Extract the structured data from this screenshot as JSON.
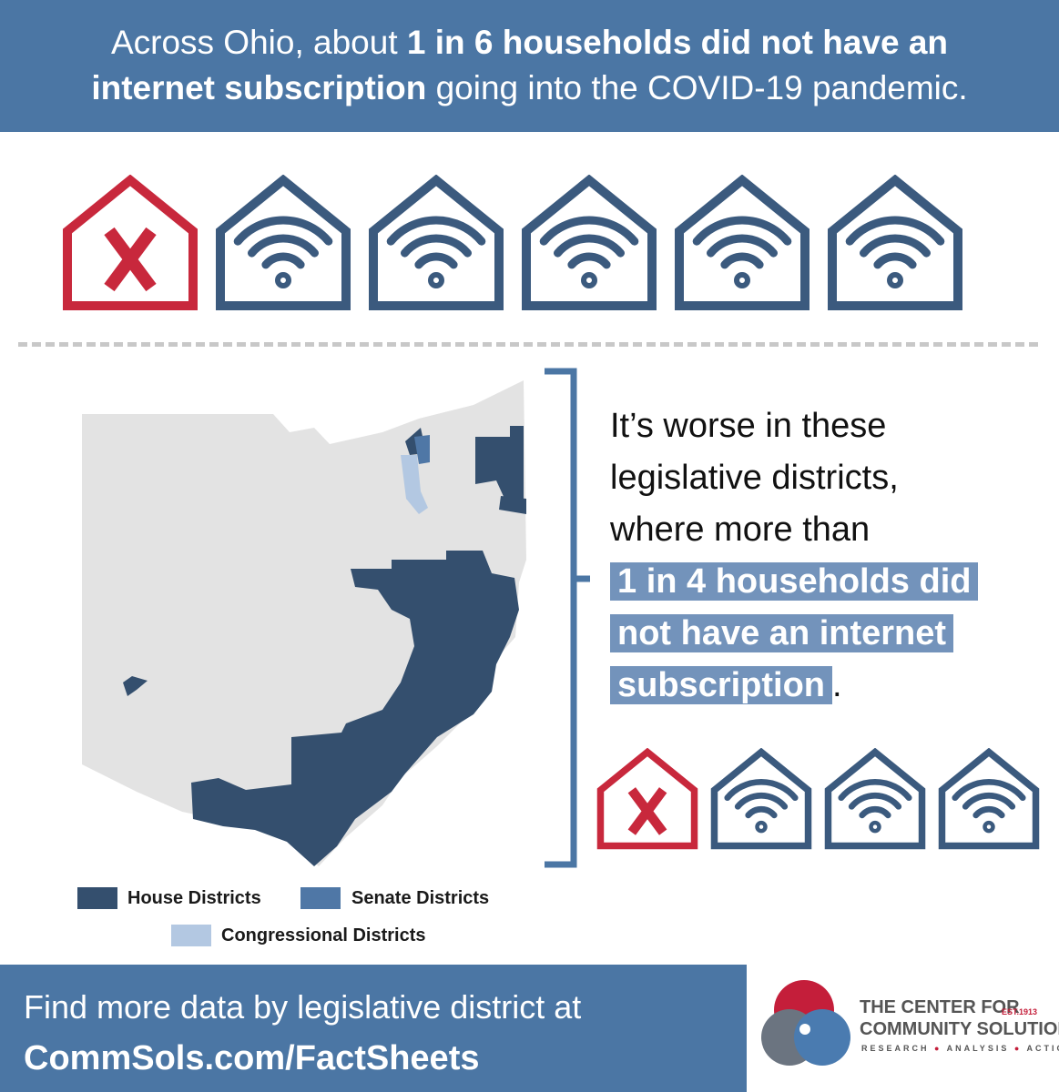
{
  "header": {
    "lead": "Across Ohio, about ",
    "bold_1": "1 in 6 households did not have an",
    "bold_2": "internet subscription",
    "tail": " going into the COVID-19 pandemic."
  },
  "callout": {
    "lines": [
      "It’s worse in these",
      "legislative districts,",
      "where more than"
    ],
    "highlight": [
      "1 in 4 households did",
      "not have an internet",
      "subscription"
    ],
    "end": "."
  },
  "legend": {
    "house": "House Districts",
    "senate": "Senate Districts",
    "congressional": "Congressional Districts"
  },
  "footer": {
    "line_1": "Find more data by legislative district at",
    "line_2": "CommSols.com/FactSheets"
  },
  "logo": {
    "name_1": "THE CENTER FOR",
    "name_2": "COMMUNITY SOLUTIONS",
    "est": "EST.1913",
    "tag_1": "RESEARCH",
    "tag_2": "ANALYSIS",
    "tag_3": "ACTION"
  }
}
